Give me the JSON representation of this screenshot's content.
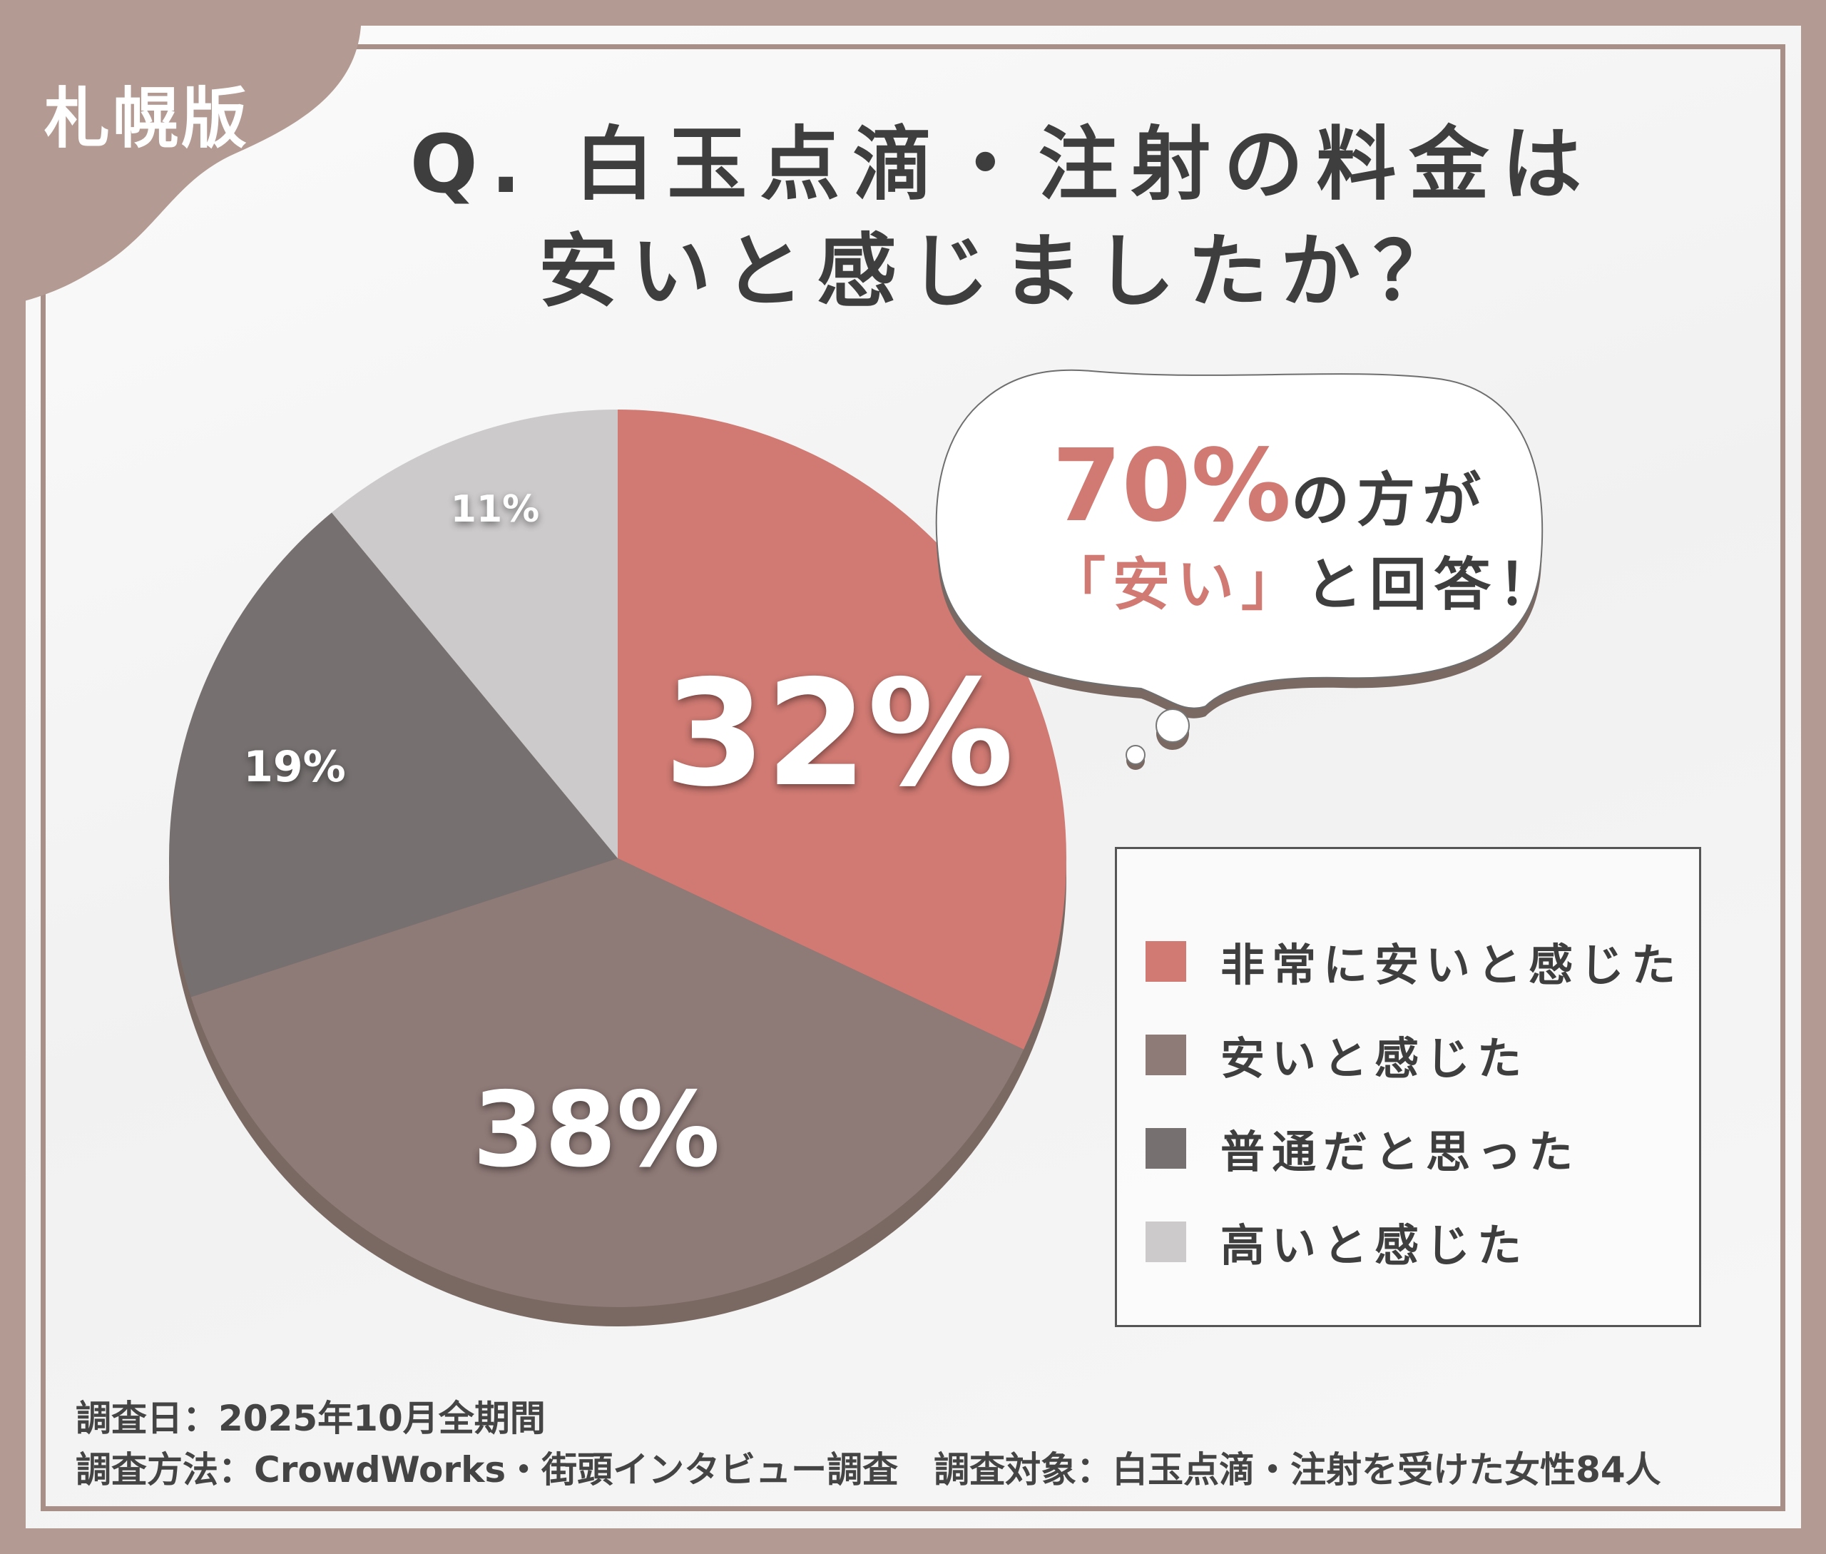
{
  "region_tag": "札幌版",
  "title": {
    "line1": "Q. 白玉点滴・注射の料金は",
    "line2": "安いと感じましたか？"
  },
  "callout": {
    "highlight": "70%",
    "line1_rest": "の方が",
    "line2_quote": "「安い」",
    "line2_rest": "と回答！"
  },
  "chart_data": {
    "type": "pie",
    "categories": [
      "非常に安いと感じた",
      "安いと感じた",
      "普通だと思った",
      "高いと感じた"
    ],
    "values": [
      32,
      38,
      19,
      11
    ],
    "labels": [
      "32%",
      "38%",
      "19%",
      "11%"
    ],
    "colors": [
      "#d07a73",
      "#8e7a77",
      "#767170",
      "#cccaca"
    ],
    "start": "top",
    "direction": "clockwise",
    "legend": "right"
  },
  "footer": {
    "date": "調査日：2025年10月全期間",
    "method": "調査方法：CrowdWorks・街頭インタビュー調査　調査対象：白玉点滴・注射を受けた女性84人"
  }
}
